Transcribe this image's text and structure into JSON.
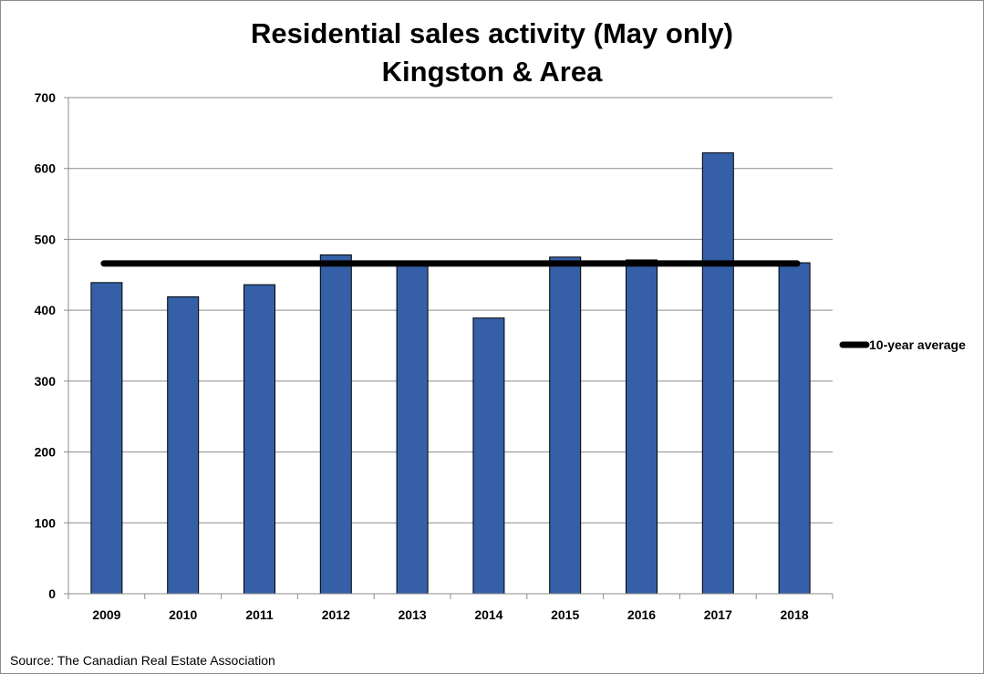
{
  "chart_data": {
    "type": "bar",
    "title": "Residential sales activity (May only)",
    "subtitle": "Kingston & Area",
    "categories": [
      "2009",
      "2010",
      "2011",
      "2012",
      "2013",
      "2014",
      "2015",
      "2016",
      "2017",
      "2018"
    ],
    "series": [
      {
        "name": "Residential sales",
        "values": [
          439,
          419,
          436,
          478,
          467,
          389,
          475,
          471,
          622,
          467
        ],
        "color": "#3560a8"
      }
    ],
    "average_line": {
      "name": "10-year average",
      "value": 466,
      "color": "#000000"
    },
    "xlabel": "",
    "ylabel": "",
    "ylim": [
      0,
      700
    ],
    "yticks": [
      0,
      100,
      200,
      300,
      400,
      500,
      600,
      700
    ],
    "grid": true,
    "legend": {
      "placement": "right",
      "entries": [
        "10-year average"
      ]
    }
  },
  "source": "Source: The Canadian Real Estate Association"
}
